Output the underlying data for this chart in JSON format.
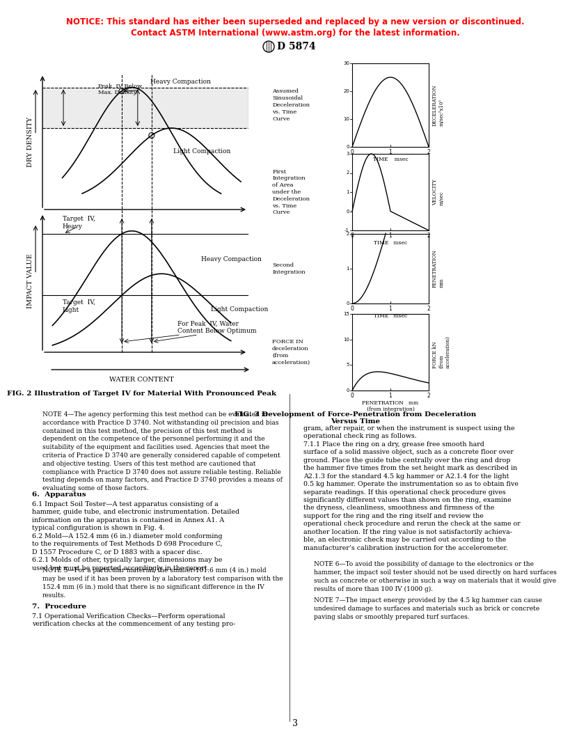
{
  "notice_line1": "NOTICE: This standard has either been superseded and replaced by a new version or discontinued.",
  "notice_line2": "Contact ASTM International (www.astm.org) for the latest information.",
  "standard_id": "D 5874",
  "page_number": "3",
  "fig2_caption": "FIG. 2 Illustration of Target IV for Material With Pronounced Peak",
  "fig3_caption": "FIG. 3 Development of Force-Penetration from Deceleration\nVersus Time",
  "fig2_xlabel": "WATER CONTENT",
  "fig2_ylabel_top": "DRY DENSITY",
  "fig2_ylabel_bottom": "IMPACT VALUE",
  "notice_color": "#FF0000",
  "text_color": "#000000",
  "background_color": "#FFFFFF",
  "body_text_sections": [
    {
      "header": "Note 4",
      "content": "NOTE 4—The agency performing this test method can be evaluated in accordance with Practice D 3740. Not withstanding oil precision and bias contained in this test method, the precision of this test method is dependent on the competence of the personnel performing it and the suitability of the equipment and facilities used. Agencies that meet the criteria of Practice D 3740 are generally considered capable of competent and objective testing. Users of this test method are cautioned that compliance with Practice D 3740 does not assure reliable testing. Reliable testing depends on many factors, and Practice D 3740 provides a means of evaluating some of those factors."
    },
    {
      "header": "6. Apparatus",
      "content": "6.1 Impact Soil Tester—A test apparatus consisting of a hammer, guide tube, and electronic instrumentation. Detailed information on the apparatus is contained in Annex A1. A typical configuration is shown in Fig. 4.\n6.2 Mold—A 152.4 mm (6 in.) diameter mold conforming to the requirements of Test Methods D 698 Procedure C, D 1557 Procedure C, or D 1883 with a spacer disc.\n6.2.1 Molds of other, typically larger, dimensions may be used but must be reported accordingly in the report."
    },
    {
      "header": "Note 5",
      "content": "NOTE 5—For a particular material, the smaller 101.6 mm (4 in.) mold may be used if it has been proven by a laboratory test comparison with the 152.4 mm (6 in.) mold that there is no significant difference in the IV results."
    },
    {
      "header": "7. Procedure",
      "content": "7.1 Operational Verification Checks—Perform operational verification checks at the commencement of any testing pro-"
    }
  ],
  "right_text_sections": [
    {
      "content": "gram, after repair, or when the instrument is suspect using the operational check ring as follows.\n7.1.1 Place the ring on a dry, grease free smooth hard surface of a solid massive object, such as a concrete floor over ground. Place the guide tube centrally over the ring and drop the hammer five times from the set height mark as described in A2.1.3 for the standard 4.5 kg hammer or A2.1.4 for the light 0.5 kg hammer. Operate the instrumentation so as to obtain five separate readings. If this operational check procedure gives significantly different values than shown on the ring, examine the dryness, cleanliness, smoothness and firmness of the support for the ring and the ring itself and review the operational check procedure and rerun the check at the same or another location. If the ring value is not satisfactorily achievable, an electronic check may be carried out according to the manufacturer’s calibration instruction for the accelerometer."
    },
    {
      "header": "Note 6",
      "content": "NOTE 6—To avoid the possibility of damage to the electronics or the hammer, the impact soil tester should not be used directly on hard surfaces such as concrete or otherwise in such a way on materials that it would give results of more than 100 IV (1000 g)."
    },
    {
      "header": "Note 7",
      "content": "NOTE 7—The impact energy provided by the 4.5 kg hammer can cause undesired damage to surfaces and materials such as brick or concrete paving slabs or smoothly prepared turf surfaces."
    }
  ]
}
